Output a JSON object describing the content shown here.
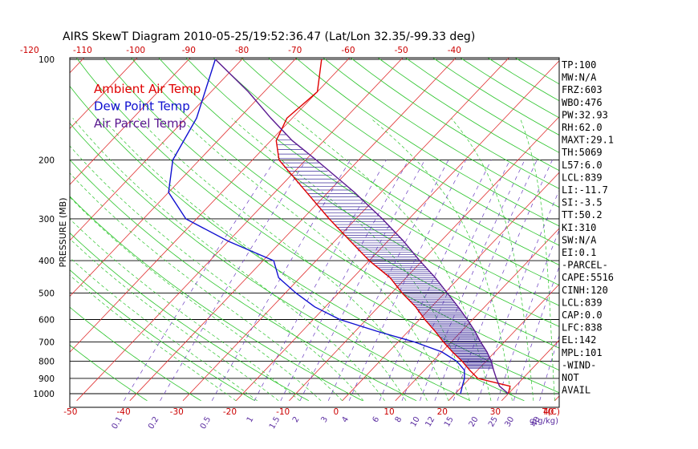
{
  "chart_data": {
    "type": "line",
    "title": "AIRS SkewT Diagram 2010-05-25/19:52:36.47 (Lat/Lon 32.35/-99.33 deg)",
    "ylabel": "PRESSURE (MB)",
    "xlabel": "T(C)",
    "mixing_label": "g(g/kg)",
    "pressure_ticks": [
      100,
      200,
      300,
      400,
      500,
      600,
      700,
      800,
      900,
      1000
    ],
    "ylim": [
      100,
      1050
    ],
    "top_temp_ticks": [
      -120,
      -110,
      -100,
      -90,
      -80,
      -70,
      -60,
      -50,
      -40
    ],
    "bottom_temp_ticks": [
      -50,
      -40,
      -30,
      -20,
      -10,
      0,
      10,
      20,
      30,
      40
    ],
    "mixing_ratio_ticks": [
      "0.1",
      "0.2",
      "0.5",
      "1",
      "1.5",
      "2",
      "3",
      "4",
      "6",
      "8",
      "10",
      "12",
      "15",
      "20",
      "25",
      "30",
      "40"
    ],
    "legend": [
      {
        "label": "Ambient Air Temp",
        "color": "#e00000"
      },
      {
        "label": "Dew Point Temp",
        "color": "#1010d0"
      },
      {
        "label": "Air Parcel Temp",
        "color": "#5a1890"
      }
    ],
    "series": [
      {
        "name": "Ambient Air Temp",
        "color": "#e00000",
        "points": [
          [
            1000,
            30
          ],
          [
            950,
            29
          ],
          [
            900,
            21.5
          ],
          [
            850,
            18.5
          ],
          [
            800,
            15.5
          ],
          [
            750,
            12
          ],
          [
            700,
            8.5
          ],
          [
            650,
            5
          ],
          [
            600,
            1
          ],
          [
            550,
            -3
          ],
          [
            500,
            -8
          ],
          [
            450,
            -13
          ],
          [
            400,
            -20
          ],
          [
            350,
            -27
          ],
          [
            300,
            -35
          ],
          [
            250,
            -44
          ],
          [
            200,
            -55
          ],
          [
            175,
            -59
          ],
          [
            150,
            -61
          ],
          [
            125,
            -60
          ],
          [
            100,
            -65
          ]
        ]
      },
      {
        "name": "Dew Point Temp",
        "color": "#1010d0",
        "points": [
          [
            1000,
            21
          ],
          [
            950,
            20
          ],
          [
            900,
            19
          ],
          [
            850,
            17.5
          ],
          [
            800,
            14.5
          ],
          [
            750,
            10
          ],
          [
            700,
            3
          ],
          [
            650,
            -6
          ],
          [
            600,
            -15
          ],
          [
            550,
            -22
          ],
          [
            500,
            -28
          ],
          [
            450,
            -34
          ],
          [
            400,
            -38
          ],
          [
            350,
            -50
          ],
          [
            300,
            -62
          ],
          [
            250,
            -70
          ],
          [
            200,
            -75
          ],
          [
            150,
            -78
          ],
          [
            100,
            -85
          ]
        ]
      },
      {
        "name": "Air Parcel Temp",
        "color": "#5a1890",
        "points": [
          [
            1000,
            30
          ],
          [
            950,
            27
          ],
          [
            900,
            25
          ],
          [
            850,
            23
          ],
          [
            800,
            21
          ],
          [
            750,
            18.5
          ],
          [
            700,
            15.5
          ],
          [
            650,
            12.5
          ],
          [
            600,
            9
          ],
          [
            550,
            5
          ],
          [
            500,
            0.5
          ],
          [
            450,
            -4.5
          ],
          [
            400,
            -10.5
          ],
          [
            350,
            -17
          ],
          [
            300,
            -25
          ],
          [
            250,
            -35
          ],
          [
            200,
            -48
          ],
          [
            175,
            -56
          ],
          [
            150,
            -64
          ],
          [
            125,
            -73
          ],
          [
            100,
            -85
          ]
        ]
      }
    ],
    "grid": true
  },
  "stats": [
    "TP:100",
    "MW:N/A",
    "FRZ:603",
    "WBO:476",
    "PW:32.93",
    "RH:62.0",
    "MAXT:29.1",
    "TH:5069",
    "L57:6.0",
    "LCL:839",
    "LI:-11.7",
    "SI:-3.5",
    "TT:50.2",
    "KI:310",
    "SW:N/A",
    "EI:0.1",
    "-PARCEL-",
    "CAPE:5516",
    "CINH:120",
    "LCL:839",
    "CAP:0.0",
    "LFC:838",
    "EL:142",
    "MPL:101",
    "-WIND-",
    "NOT",
    "AVAIL"
  ]
}
